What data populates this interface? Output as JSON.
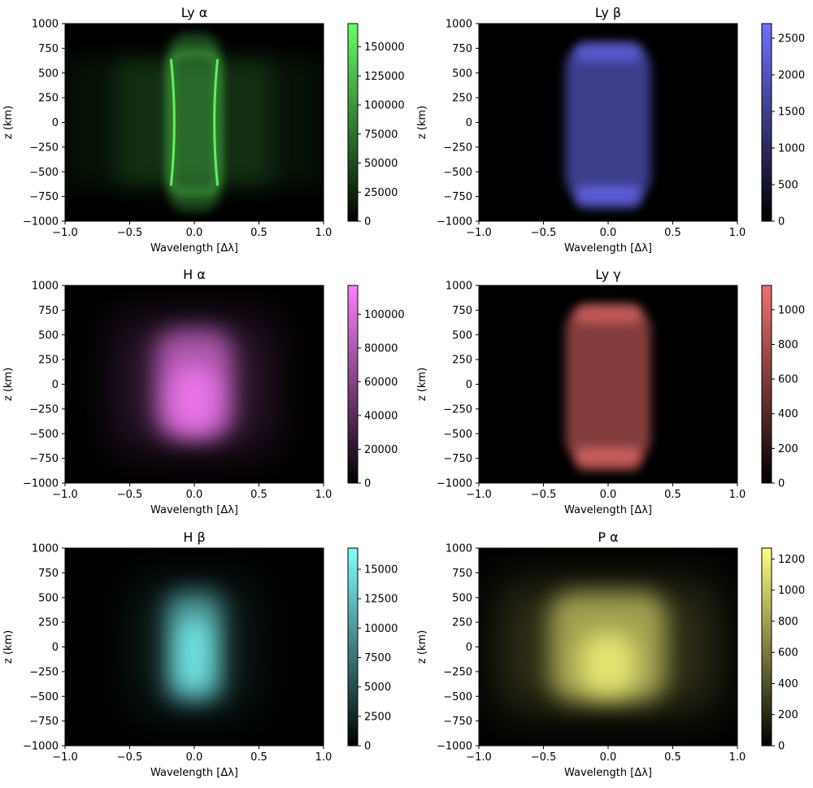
{
  "chart_data": [
    {
      "type": "heatmap",
      "title": "Ly α",
      "xlabel": "Wavelength [Δλ]",
      "ylabel": "z (km)",
      "xlim": [
        -1.0,
        1.0
      ],
      "ylim": [
        -1000,
        1000
      ],
      "x_ticks": [
        "−1.0",
        "−0.5",
        "0.0",
        "0.5",
        "1.0"
      ],
      "y_ticks": [
        "1000",
        "750",
        "500",
        "250",
        "0",
        "−250",
        "−500",
        "−750",
        "−1000"
      ],
      "colorbar": {
        "min": 0,
        "max": 170000,
        "ticks": [
          0,
          25000,
          50000,
          75000,
          100000,
          125000,
          150000
        ],
        "color": "#66ff66"
      },
      "shape": "rim",
      "grid": false
    },
    {
      "type": "heatmap",
      "title": "Ly β",
      "xlabel": "Wavelength [Δλ]",
      "ylabel": "z (km)",
      "xlim": [
        -1.0,
        1.0
      ],
      "ylim": [
        -1000,
        1000
      ],
      "x_ticks": [
        "−1.0",
        "−0.5",
        "0.0",
        "0.5",
        "1.0"
      ],
      "y_ticks": [
        "1000",
        "750",
        "500",
        "250",
        "0",
        "−250",
        "−500",
        "−750",
        "−1000"
      ],
      "colorbar": {
        "min": 0,
        "max": 2700,
        "ticks": [
          0,
          500,
          1000,
          1500,
          2000,
          2500
        ],
        "color": "#7070ff"
      },
      "shape": "capped",
      "grid": false
    },
    {
      "type": "heatmap",
      "title": "H α",
      "xlabel": "Wavelength [Δλ]",
      "ylabel": "z (km)",
      "xlim": [
        -1.0,
        1.0
      ],
      "ylim": [
        -1000,
        1000
      ],
      "x_ticks": [
        "−1.0",
        "−0.5",
        "0.0",
        "0.5",
        "1.0"
      ],
      "y_ticks": [
        "1000",
        "750",
        "500",
        "250",
        "0",
        "−250",
        "−500",
        "−750",
        "−1000"
      ],
      "colorbar": {
        "min": 0,
        "max": 117000,
        "ticks": [
          0,
          20000,
          40000,
          60000,
          80000,
          100000
        ],
        "color": "#ff80ff"
      },
      "shape": "blob",
      "grid": false
    },
    {
      "type": "heatmap",
      "title": "Ly γ",
      "xlabel": "Wavelength [Δλ]",
      "ylabel": "z (km)",
      "xlim": [
        -1.0,
        1.0
      ],
      "ylim": [
        -1000,
        1000
      ],
      "x_ticks": [
        "−1.0",
        "−0.5",
        "0.0",
        "0.5",
        "1.0"
      ],
      "y_ticks": [
        "1000",
        "750",
        "500",
        "250",
        "0",
        "−250",
        "−500",
        "−750",
        "−1000"
      ],
      "colorbar": {
        "min": 0,
        "max": 1140,
        "ticks": [
          0,
          200,
          400,
          600,
          800,
          1000
        ],
        "color": "#f07070"
      },
      "shape": "capped",
      "grid": false
    },
    {
      "type": "heatmap",
      "title": "H β",
      "xlabel": "Wavelength [Δλ]",
      "ylabel": "z (km)",
      "xlim": [
        -1.0,
        1.0
      ],
      "ylim": [
        -1000,
        1000
      ],
      "x_ticks": [
        "−1.0",
        "−0.5",
        "0.0",
        "0.5",
        "1.0"
      ],
      "y_ticks": [
        "1000",
        "750",
        "500",
        "250",
        "0",
        "−250",
        "−500",
        "−750",
        "−1000"
      ],
      "colorbar": {
        "min": 0,
        "max": 16800,
        "ticks": [
          0,
          2500,
          5000,
          7500,
          10000,
          12500,
          15000
        ],
        "color": "#80ffff"
      },
      "shape": "narrow",
      "grid": false
    },
    {
      "type": "heatmap",
      "title": "P α",
      "xlabel": "Wavelength [Δλ]",
      "ylabel": "z (km)",
      "xlim": [
        -1.0,
        1.0
      ],
      "ylim": [
        -1000,
        1000
      ],
      "x_ticks": [
        "−1.0",
        "−0.5",
        "0.0",
        "0.5",
        "1.0"
      ],
      "y_ticks": [
        "1000",
        "750",
        "500",
        "250",
        "0",
        "−250",
        "−500",
        "−750",
        "−1000"
      ],
      "colorbar": {
        "min": 0,
        "max": 1270,
        "ticks": [
          0,
          200,
          400,
          600,
          800,
          1000,
          1200
        ],
        "color": "#ffff80"
      },
      "shape": "wide",
      "grid": false
    }
  ]
}
